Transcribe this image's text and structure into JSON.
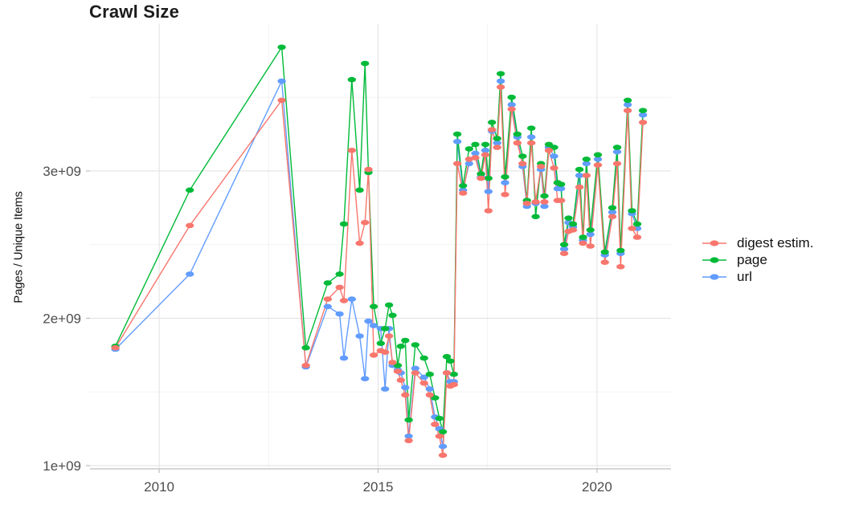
{
  "page": {
    "title": "Crawl Size"
  },
  "chart_data": {
    "type": "line",
    "title": "Crawl Size",
    "xlabel": "",
    "ylabel": "Pages / Unique Items",
    "y_value_scale": "1e9",
    "grid": true,
    "legend_position": "right",
    "x_domain": [
      2008.42,
      2021.69
    ],
    "y_domain": [
      0.978,
      3.997
    ],
    "x_ticks": [
      {
        "value": 2010,
        "label": "2010"
      },
      {
        "value": 2015,
        "label": "2015"
      },
      {
        "value": 2020,
        "label": "2020"
      }
    ],
    "y_ticks": [
      {
        "value": 1,
        "label": "1e+09"
      },
      {
        "value": 2,
        "label": "2e+09"
      },
      {
        "value": 3,
        "label": "3e+09"
      }
    ],
    "x_minor": [
      2012.5,
      2017.5
    ],
    "y_minor": [
      1.5,
      2.5,
      3.5
    ],
    "x": [
      2009.0,
      2010.7,
      2012.8,
      2013.35,
      2013.85,
      2014.12,
      2014.22,
      2014.4,
      2014.58,
      2014.7,
      2014.78,
      2014.9,
      2015.06,
      2015.16,
      2015.25,
      2015.33,
      2015.45,
      2015.52,
      2015.62,
      2015.7,
      2015.85,
      2016.05,
      2016.18,
      2016.3,
      2016.4,
      2016.48,
      2016.57,
      2016.65,
      2016.73,
      2016.81,
      2016.94,
      2017.08,
      2017.22,
      2017.35,
      2017.45,
      2017.52,
      2017.6,
      2017.72,
      2017.8,
      2017.9,
      2018.05,
      2018.18,
      2018.3,
      2018.4,
      2018.5,
      2018.6,
      2018.72,
      2018.8,
      2018.9,
      2019.02,
      2019.1,
      2019.18,
      2019.25,
      2019.35,
      2019.45,
      2019.6,
      2019.68,
      2019.76,
      2019.85,
      2020.02,
      2020.18,
      2020.35,
      2020.46,
      2020.54,
      2020.7,
      2020.8,
      2020.92,
      2021.05
    ],
    "series": [
      {
        "id": "digest",
        "name": "digest estim.",
        "color": "#F8766D",
        "values": [
          1.8,
          2.63,
          3.48,
          1.68,
          2.13,
          2.21,
          2.12,
          3.14,
          2.51,
          2.65,
          3.01,
          1.75,
          1.78,
          1.77,
          1.88,
          1.7,
          1.64,
          1.58,
          1.48,
          1.17,
          1.63,
          1.56,
          1.48,
          1.28,
          1.2,
          1.07,
          1.63,
          1.54,
          1.55,
          3.05,
          2.85,
          3.08,
          3.09,
          2.95,
          3.11,
          2.73,
          3.28,
          3.16,
          3.57,
          2.84,
          3.42,
          3.19,
          3.05,
          2.78,
          3.19,
          2.79,
          3.03,
          2.79,
          3.14,
          3.02,
          2.8,
          2.8,
          2.44,
          2.59,
          2.6,
          2.89,
          2.51,
          2.97,
          2.49,
          3.04,
          2.38,
          2.69,
          3.05,
          2.35,
          3.41,
          2.61,
          2.55,
          3.33
        ]
      },
      {
        "id": "page",
        "name": "page",
        "color": "#00BA38",
        "values": [
          1.81,
          2.87,
          3.84,
          1.8,
          2.24,
          2.3,
          2.64,
          3.62,
          2.87,
          3.73,
          2.99,
          2.08,
          1.83,
          1.93,
          2.09,
          2.02,
          1.68,
          1.81,
          1.85,
          1.31,
          1.82,
          1.73,
          1.62,
          1.46,
          1.32,
          1.23,
          1.74,
          1.71,
          1.62,
          3.25,
          2.9,
          3.15,
          3.18,
          2.98,
          3.18,
          2.95,
          3.33,
          3.22,
          3.66,
          2.96,
          3.5,
          3.25,
          3.1,
          2.8,
          3.29,
          2.69,
          3.05,
          2.83,
          3.18,
          3.16,
          2.92,
          2.91,
          2.5,
          2.68,
          2.64,
          3.01,
          2.55,
          3.08,
          2.6,
          3.11,
          2.45,
          2.75,
          3.16,
          2.46,
          3.48,
          2.73,
          2.64,
          3.41
        ]
      },
      {
        "id": "url",
        "name": "url",
        "color": "#619CFF",
        "values": [
          1.79,
          2.3,
          3.61,
          1.67,
          2.08,
          2.03,
          1.73,
          2.13,
          1.88,
          1.59,
          1.98,
          1.95,
          1.93,
          1.52,
          1.93,
          1.68,
          1.65,
          1.63,
          1.53,
          1.2,
          1.66,
          1.6,
          1.52,
          1.33,
          1.25,
          1.13,
          1.63,
          1.57,
          1.57,
          3.2,
          2.87,
          3.05,
          3.12,
          2.96,
          3.14,
          2.86,
          3.27,
          3.19,
          3.61,
          2.92,
          3.45,
          3.23,
          3.03,
          2.76,
          3.23,
          2.78,
          3.01,
          2.76,
          3.16,
          3.1,
          2.88,
          2.88,
          2.47,
          2.65,
          2.62,
          2.97,
          2.53,
          3.05,
          2.57,
          3.08,
          2.43,
          2.72,
          3.13,
          2.44,
          3.45,
          2.71,
          2.61,
          3.38
        ]
      }
    ],
    "colors": {
      "background": "#FFFFFF",
      "grid_major": "#E3E3E3",
      "grid_minor": "#F0F0F0",
      "axis_line": "#BFBFBF",
      "tick_text": "#4D4D4D",
      "title_text": "#1C1C1C",
      "legend_text": "#111111"
    }
  }
}
